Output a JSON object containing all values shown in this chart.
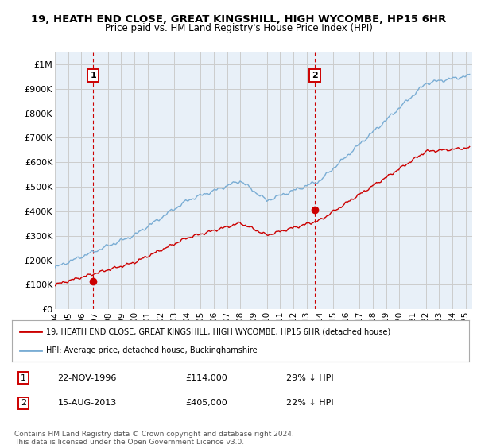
{
  "title1": "19, HEATH END CLOSE, GREAT KINGSHILL, HIGH WYCOMBE, HP15 6HR",
  "title2": "Price paid vs. HM Land Registry's House Price Index (HPI)",
  "ylabel_ticks": [
    "£0",
    "£100K",
    "£200K",
    "£300K",
    "£400K",
    "£500K",
    "£600K",
    "£700K",
    "£800K",
    "£900K",
    "£1M"
  ],
  "ytick_values": [
    0,
    100000,
    200000,
    300000,
    400000,
    500000,
    600000,
    700000,
    800000,
    900000,
    1000000
  ],
  "ylim": [
    0,
    1050000
  ],
  "xlim_start": 1994.0,
  "xlim_end": 2025.5,
  "xticks": [
    1994,
    1995,
    1996,
    1997,
    1998,
    1999,
    2000,
    2001,
    2002,
    2003,
    2004,
    2005,
    2006,
    2007,
    2008,
    2009,
    2010,
    2011,
    2012,
    2013,
    2014,
    2015,
    2016,
    2017,
    2018,
    2019,
    2020,
    2021,
    2022,
    2023,
    2024,
    2025
  ],
  "sale1_x": 1996.9,
  "sale1_y": 114000,
  "sale2_x": 2013.62,
  "sale2_y": 405000,
  "red_color": "#cc0000",
  "blue_color": "#7aadd4",
  "dashed_vline_color": "#cc0000",
  "grid_color": "#cccccc",
  "bg_color": "#ffffff",
  "plot_bg_color": "#e8f0f8",
  "legend_line1": "19, HEATH END CLOSE, GREAT KINGSHILL, HIGH WYCOMBE, HP15 6HR (detached house)",
  "legend_line2": "HPI: Average price, detached house, Buckinghamshire",
  "sale1_label": "1",
  "sale2_label": "2",
  "sale1_date": "22-NOV-1996",
  "sale1_price": "£114,000",
  "sale1_hpi": "29% ↓ HPI",
  "sale2_date": "15-AUG-2013",
  "sale2_price": "£405,000",
  "sale2_hpi": "22% ↓ HPI",
  "footnote": "Contains HM Land Registry data © Crown copyright and database right 2024.\nThis data is licensed under the Open Government Licence v3.0.",
  "sale_box_color": "#cc0000"
}
